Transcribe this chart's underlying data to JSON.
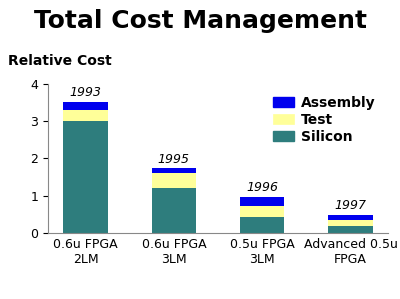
{
  "title": "Total Cost Management",
  "relative_cost_label": "Relative Cost",
  "categories": [
    "0.6u FPGA\n2LM",
    "0.6u FPGA\n3LM",
    "0.5u FPGA\n3LM",
    "Advanced 0.5u\nFPGA"
  ],
  "years": [
    "1993",
    "1995",
    "1996",
    "1997"
  ],
  "silicon": [
    3.0,
    1.2,
    0.43,
    0.2
  ],
  "test": [
    0.3,
    0.4,
    0.3,
    0.15
  ],
  "assembly": [
    0.22,
    0.15,
    0.25,
    0.15
  ],
  "silicon_color": "#2e7d7d",
  "test_color": "#ffff99",
  "assembly_color": "#0000ee",
  "ylim": [
    0,
    4
  ],
  "yticks": [
    0,
    1,
    2,
    3,
    4
  ],
  "background_color": "#ffffff",
  "title_fontsize": 18,
  "rel_cost_fontsize": 10,
  "tick_fontsize": 9,
  "legend_fontsize": 10,
  "year_fontsize": 9,
  "bar_width": 0.5
}
